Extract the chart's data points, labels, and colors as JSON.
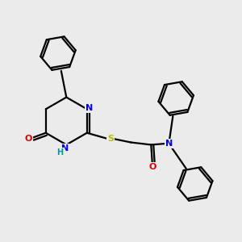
{
  "bg_color": "#ebebeb",
  "atom_colors": {
    "C": "#000000",
    "N": "#0000ee",
    "O": "#dd0000",
    "S": "#bbbb00",
    "H": "#009999"
  },
  "line_color": "#000000",
  "line_width": 1.6,
  "figsize": [
    3.0,
    3.0
  ],
  "dpi": 100
}
